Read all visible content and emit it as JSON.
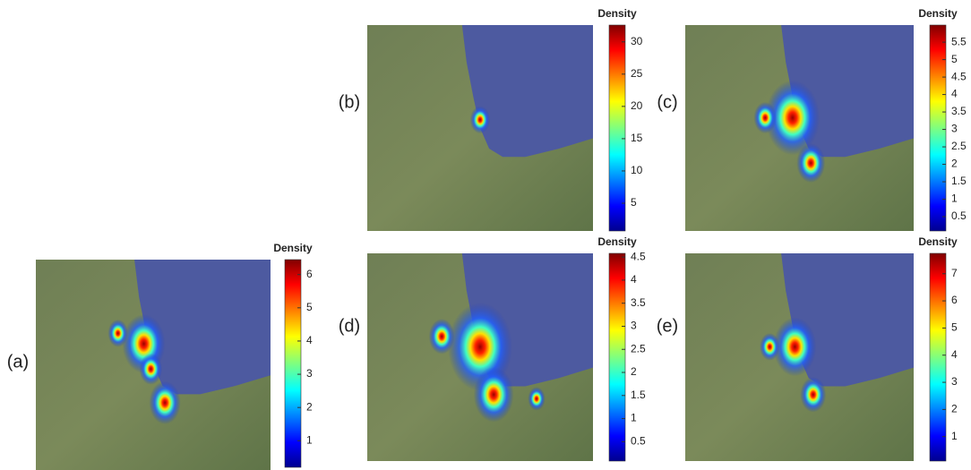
{
  "panels": [
    {
      "label": "(a)",
      "colorbar": {
        "title": "Density",
        "clim": [
          0.2,
          6.45
        ],
        "ticks": [
          1,
          2,
          3,
          4,
          5,
          6
        ]
      }
    },
    {
      "label": "(b)",
      "colorbar": {
        "title": "Density",
        "clim": [
          0.7,
          32.6
        ],
        "ticks": [
          5,
          10,
          15,
          20,
          25,
          30
        ]
      }
    },
    {
      "label": "(c)",
      "colorbar": {
        "title": "Density",
        "clim": [
          0.09,
          5.99
        ],
        "ticks": [
          0.5,
          1,
          1.5,
          2,
          2.5,
          3,
          3.5,
          4,
          4.5,
          5,
          5.5
        ]
      }
    },
    {
      "label": "(d)",
      "colorbar": {
        "title": "Density",
        "clim": [
          0.08,
          4.58
        ],
        "ticks": [
          0.5,
          1,
          1.5,
          2,
          2.5,
          3,
          3.5,
          4,
          4.5
        ]
      }
    },
    {
      "label": "(e)",
      "colorbar": {
        "title": "Density",
        "clim": [
          0.1,
          7.75
        ],
        "ticks": [
          1,
          2,
          3,
          4,
          5,
          6,
          7
        ]
      }
    }
  ]
}
